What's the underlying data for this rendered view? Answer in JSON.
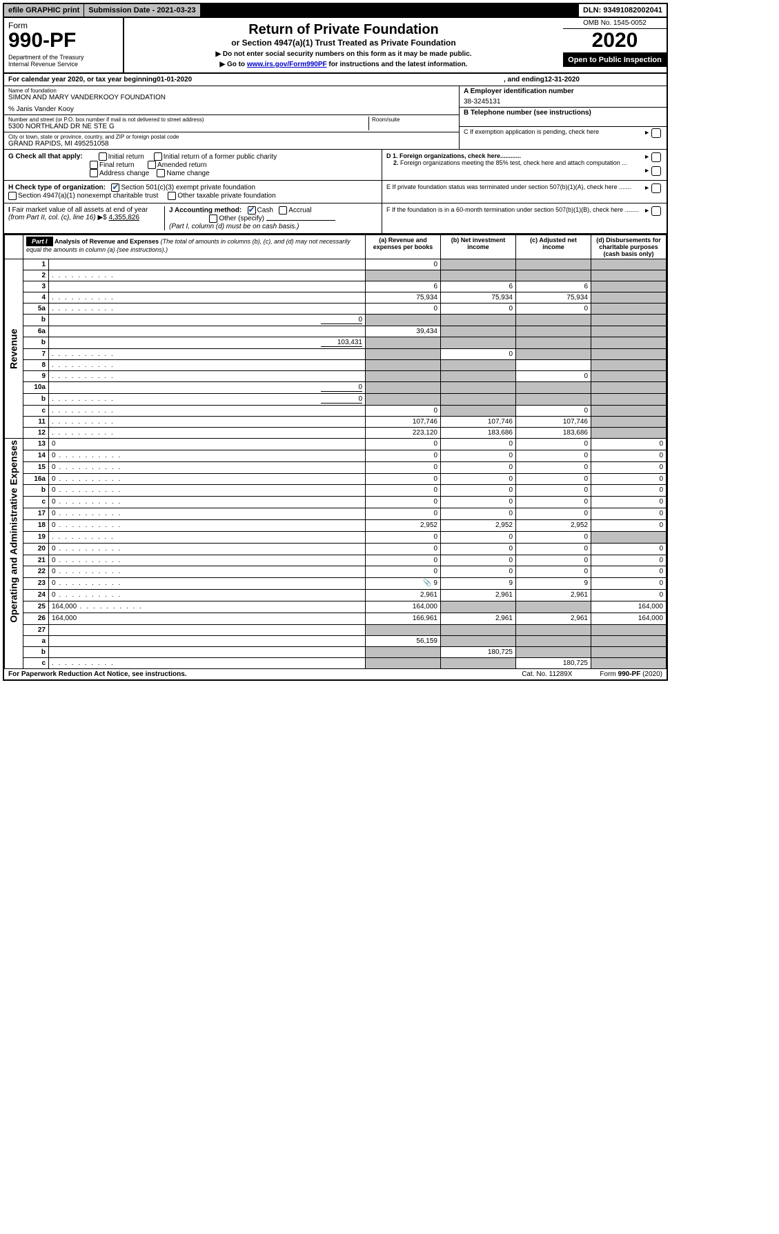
{
  "top": {
    "efile": "efile GRAPHIC print",
    "subdate": "Submission Date - 2021-03-23",
    "dln": "DLN: 93491082002041"
  },
  "header": {
    "form_word": "Form",
    "form_no": "990-PF",
    "dept": "Department of the Treasury\nInternal Revenue Service",
    "title1": "Return of Private Foundation",
    "title2": "or Section 4947(a)(1) Trust Treated as Private Foundation",
    "instr1": "▶ Do not enter social security numbers on this form as it may be made public.",
    "instr2_pre": "▶ Go to ",
    "instr2_link": "www.irs.gov/Form990PF",
    "instr2_post": " for instructions and the latest information.",
    "omb": "OMB No. 1545-0052",
    "year": "2020",
    "open": "Open to Public Inspection"
  },
  "cal": {
    "pre": "For calendar year 2020, or tax year beginning ",
    "begin": "01-01-2020",
    "mid": ", and ending ",
    "end": "12-31-2020"
  },
  "id": {
    "name_lbl": "Name of foundation",
    "name": "SIMON AND MARY VANDERKOOY FOUNDATION",
    "co": "% Janis Vander Kooy",
    "addr_lbl": "Number and street (or P.O. box number if mail is not delivered to street address)",
    "addr": "5300 NORTHLAND DR NE STE G",
    "room_lbl": "Room/suite",
    "city_lbl": "City or town, state or province, country, and ZIP or foreign postal code",
    "city": "GRAND RAPIDS, MI  495251058",
    "A_lbl": "A Employer identification number",
    "A_val": "38-3245131",
    "B_lbl": "B Telephone number (see instructions)",
    "C_lbl": "C If exemption application is pending, check here",
    "D1": "D 1. Foreign organizations, check here............",
    "D2": "2. Foreign organizations meeting the 85% test, check here and attach computation ...",
    "E": "E  If private foundation status was terminated under section 507(b)(1)(A), check here .......",
    "F": "F   If the foundation is in a 60-month termination under section 507(b)(1)(B), check here ........"
  },
  "G": {
    "lbl": "G Check all that apply:",
    "opts": [
      "Initial return",
      "Initial return of a former public charity",
      "Final return",
      "Amended return",
      "Address change",
      "Name change"
    ]
  },
  "H": {
    "lbl": "H Check type of organization:",
    "o1": "Section 501(c)(3) exempt private foundation",
    "o2": "Section 4947(a)(1) nonexempt charitable trust",
    "o3": "Other taxable private foundation"
  },
  "I": {
    "lbl": "I Fair market value of all assets at end of year (from Part II, col. (c), line 16) ▶$  ",
    "val": "4,355,826"
  },
  "J": {
    "lbl": "J Accounting method:",
    "o1": "Cash",
    "o2": "Accrual",
    "o3": "Other (specify)",
    "note": "(Part I, column (d) must be on cash basis.)"
  },
  "part1": {
    "label": "Part I",
    "heading": "Analysis of Revenue and Expenses",
    "heading_note": "(The total of amounts in columns (b), (c), and (d) may not necessarily equal the amounts in column (a) (see instructions).)",
    "col_a": "(a) Revenue and expenses per books",
    "col_b": "(b) Net investment income",
    "col_c": "(c) Adjusted net income",
    "col_d": "(d) Disbursements for charitable purposes (cash basis only)"
  },
  "sections": {
    "rev": "Revenue",
    "exp": "Operating and Administrative Expenses"
  },
  "rows": [
    {
      "n": "1",
      "d": "",
      "a": "0",
      "b": "",
      "c": "",
      "sb": true,
      "sc": true,
      "sd": true
    },
    {
      "n": "2",
      "d": "",
      "a": "",
      "b": "",
      "c": "",
      "sa": true,
      "sb": true,
      "sc": true,
      "sd": true,
      "dots": true
    },
    {
      "n": "3",
      "d": "",
      "a": "6",
      "b": "6",
      "c": "6",
      "sd": true
    },
    {
      "n": "4",
      "d": "",
      "a": "75,934",
      "b": "75,934",
      "c": "75,934",
      "sd": true,
      "dots": true
    },
    {
      "n": "5a",
      "d": "",
      "a": "0",
      "b": "0",
      "c": "0",
      "sd": true,
      "dots": true
    },
    {
      "n": "b",
      "d": "",
      "inline": "0",
      "a": "",
      "b": "",
      "c": "",
      "sa": true,
      "sb": true,
      "sc": true,
      "sd": true
    },
    {
      "n": "6a",
      "d": "",
      "a": "39,434",
      "b": "",
      "c": "",
      "sb": true,
      "sc": true,
      "sd": true
    },
    {
      "n": "b",
      "d": "",
      "inline": "103,431",
      "a": "",
      "b": "",
      "c": "",
      "sa": true,
      "sb": true,
      "sc": true,
      "sd": true
    },
    {
      "n": "7",
      "d": "",
      "a": "",
      "b": "0",
      "c": "",
      "sa": true,
      "sc": true,
      "sd": true,
      "dots": true
    },
    {
      "n": "8",
      "d": "",
      "a": "",
      "b": "",
      "c": "",
      "sa": true,
      "sb": true,
      "sd": true,
      "dots": true
    },
    {
      "n": "9",
      "d": "",
      "a": "",
      "b": "",
      "c": "0",
      "sa": true,
      "sb": true,
      "sd": true,
      "dots": true
    },
    {
      "n": "10a",
      "d": "",
      "inline": "0",
      "a": "",
      "b": "",
      "c": "",
      "sa": true,
      "sb": true,
      "sc": true,
      "sd": true
    },
    {
      "n": "b",
      "d": "",
      "inline": "0",
      "a": "",
      "b": "",
      "c": "",
      "sa": true,
      "sb": true,
      "sc": true,
      "sd": true,
      "dots": true
    },
    {
      "n": "c",
      "d": "",
      "a": "0",
      "b": "",
      "c": "0",
      "sb": true,
      "sd": true,
      "dots": true
    },
    {
      "n": "11",
      "d": "",
      "a": "107,746",
      "b": "107,746",
      "c": "107,746",
      "sd": true,
      "dots": true
    },
    {
      "n": "12",
      "d": "",
      "a": "223,120",
      "b": "183,686",
      "c": "183,686",
      "sd": true,
      "dots": true
    },
    {
      "n": "13",
      "d": "0",
      "a": "0",
      "b": "0",
      "c": "0",
      "sec": "exp"
    },
    {
      "n": "14",
      "d": "0",
      "a": "0",
      "b": "0",
      "c": "0",
      "dots": true
    },
    {
      "n": "15",
      "d": "0",
      "a": "0",
      "b": "0",
      "c": "0",
      "dots": true
    },
    {
      "n": "16a",
      "d": "0",
      "a": "0",
      "b": "0",
      "c": "0",
      "dots": true
    },
    {
      "n": "b",
      "d": "0",
      "a": "0",
      "b": "0",
      "c": "0",
      "dots": true
    },
    {
      "n": "c",
      "d": "0",
      "a": "0",
      "b": "0",
      "c": "0",
      "dots": true
    },
    {
      "n": "17",
      "d": "0",
      "a": "0",
      "b": "0",
      "c": "0",
      "dots": true
    },
    {
      "n": "18",
      "d": "0",
      "a": "2,952",
      "b": "2,952",
      "c": "2,952",
      "dots": true
    },
    {
      "n": "19",
      "d": "",
      "a": "0",
      "b": "0",
      "c": "0",
      "sd": true,
      "dots": true
    },
    {
      "n": "20",
      "d": "0",
      "a": "0",
      "b": "0",
      "c": "0",
      "dots": true
    },
    {
      "n": "21",
      "d": "0",
      "a": "0",
      "b": "0",
      "c": "0",
      "dots": true
    },
    {
      "n": "22",
      "d": "0",
      "a": "0",
      "b": "0",
      "c": "0",
      "dots": true
    },
    {
      "n": "23",
      "d": "0",
      "a": "9",
      "b": "9",
      "c": "9",
      "icon": true,
      "dots": true
    },
    {
      "n": "24",
      "d": "0",
      "a": "2,961",
      "b": "2,961",
      "c": "2,961",
      "dots": true
    },
    {
      "n": "25",
      "d": "164,000",
      "a": "164,000",
      "b": "",
      "c": "",
      "sb": true,
      "sc": true,
      "dots": true
    },
    {
      "n": "26",
      "d": "164,000",
      "a": "166,961",
      "b": "2,961",
      "c": "2,961"
    },
    {
      "n": "27",
      "d": "",
      "a": "",
      "b": "",
      "c": "",
      "sa": true,
      "sb": true,
      "sc": true,
      "sd": true,
      "noside": true
    },
    {
      "n": "a",
      "d": "",
      "a": "56,159",
      "b": "",
      "c": "",
      "sb": true,
      "sc": true,
      "sd": true
    },
    {
      "n": "b",
      "d": "",
      "a": "",
      "b": "180,725",
      "c": "",
      "sa": true,
      "sc": true,
      "sd": true
    },
    {
      "n": "c",
      "d": "",
      "a": "",
      "b": "",
      "c": "180,725",
      "sa": true,
      "sb": true,
      "sd": true,
      "dots": true
    }
  ],
  "footer": {
    "l": "For Paperwork Reduction Act Notice, see instructions.",
    "m": "Cat. No. 11289X",
    "r": "Form 990-PF (2020)"
  }
}
